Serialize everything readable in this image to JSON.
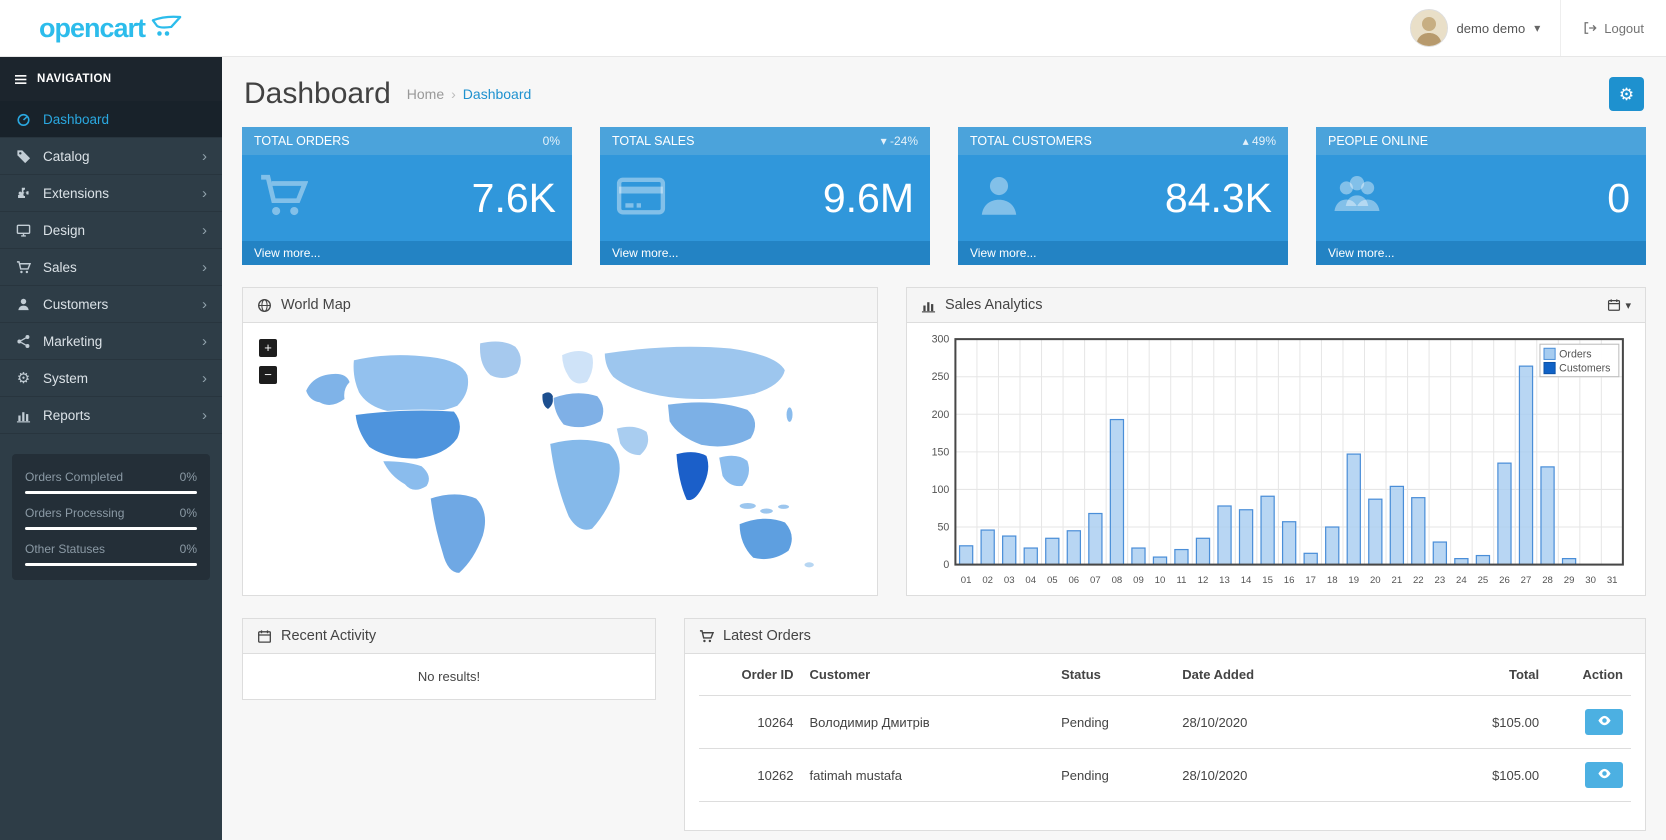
{
  "header": {
    "logo_text": "opencart",
    "user_name": "demo demo",
    "logout_label": "Logout"
  },
  "sidebar": {
    "nav_title": "NAVIGATION",
    "items": [
      {
        "label": "Dashboard",
        "icon": "dashboard-icon",
        "active": true,
        "has_children": false
      },
      {
        "label": "Catalog",
        "icon": "tag-icon",
        "active": false,
        "has_children": true
      },
      {
        "label": "Extensions",
        "icon": "puzzle-icon",
        "active": false,
        "has_children": true
      },
      {
        "label": "Design",
        "icon": "monitor-icon",
        "active": false,
        "has_children": true
      },
      {
        "label": "Sales",
        "icon": "cart-icon",
        "active": false,
        "has_children": true
      },
      {
        "label": "Customers",
        "icon": "user-icon",
        "active": false,
        "has_children": true
      },
      {
        "label": "Marketing",
        "icon": "share-icon",
        "active": false,
        "has_children": true
      },
      {
        "label": "System",
        "icon": "gear-icon",
        "active": false,
        "has_children": true
      },
      {
        "label": "Reports",
        "icon": "bar-chart-icon",
        "active": false,
        "has_children": true
      }
    ],
    "progress": [
      {
        "label": "Orders Completed",
        "value": "0%"
      },
      {
        "label": "Orders Processing",
        "value": "0%"
      },
      {
        "label": "Other Statuses",
        "value": "0%"
      }
    ]
  },
  "page": {
    "title": "Dashboard",
    "breadcrumb": [
      "Home",
      "Dashboard"
    ]
  },
  "tiles": [
    {
      "title": "TOTAL ORDERS",
      "delta": "0%",
      "trend": "none",
      "value": "7.6K",
      "icon": "cart-icon",
      "link": "View more..."
    },
    {
      "title": "TOTAL SALES",
      "delta": "-24%",
      "trend": "down",
      "value": "9.6M",
      "icon": "credit-card-icon",
      "link": "View more..."
    },
    {
      "title": "TOTAL CUSTOMERS",
      "delta": "49%",
      "trend": "up",
      "value": "84.3K",
      "icon": "user-icon",
      "link": "View more..."
    },
    {
      "title": "PEOPLE ONLINE",
      "delta": "",
      "trend": "none",
      "value": "0",
      "icon": "users-icon",
      "link": "View more..."
    }
  ],
  "world_map": {
    "title": "World Map",
    "zoom_in_label": "+",
    "zoom_out_label": "−"
  },
  "sales_analytics": {
    "title": "Sales Analytics"
  },
  "chart_data": {
    "type": "bar",
    "title": "Sales Analytics",
    "xlabel": "",
    "ylabel": "",
    "categories": [
      "01",
      "02",
      "03",
      "04",
      "05",
      "06",
      "07",
      "08",
      "09",
      "10",
      "11",
      "12",
      "13",
      "14",
      "15",
      "16",
      "17",
      "18",
      "19",
      "20",
      "21",
      "22",
      "23",
      "24",
      "25",
      "26",
      "27",
      "28",
      "29",
      "30",
      "31"
    ],
    "series": [
      {
        "name": "Orders",
        "color": "#a6ccf0",
        "border": "#4a8ed8",
        "values": [
          25,
          46,
          38,
          22,
          35,
          45,
          68,
          193,
          22,
          10,
          20,
          35,
          78,
          73,
          91,
          57,
          15,
          50,
          147,
          87,
          104,
          89,
          30,
          8,
          12,
          135,
          264,
          130,
          8,
          0,
          0
        ]
      },
      {
        "name": "Customers",
        "color": "#1062c6",
        "border": "#0c52a8",
        "values": [
          0,
          0,
          0,
          0,
          0,
          0,
          0,
          0,
          0,
          0,
          0,
          0,
          0,
          0,
          0,
          0,
          0,
          0,
          0,
          0,
          0,
          0,
          0,
          0,
          0,
          0,
          0,
          0,
          0,
          0,
          0
        ]
      }
    ],
    "ylim": [
      0,
      300
    ],
    "yticks": [
      0,
      50,
      100,
      150,
      200,
      250,
      300
    ],
    "grid": true,
    "legend_position": "top-right"
  },
  "recent_activity": {
    "title": "Recent Activity",
    "empty_text": "No results!"
  },
  "latest_orders": {
    "title": "Latest Orders",
    "columns": [
      "Order ID",
      "Customer",
      "Status",
      "Date Added",
      "Total",
      "Action"
    ],
    "rows": [
      {
        "order_id": "10264",
        "customer": "Володимир Дмитрів",
        "status": "Pending",
        "date_added": "28/10/2020",
        "total": "$105.00"
      },
      {
        "order_id": "10262",
        "customer": "fatimah mustafa",
        "status": "Pending",
        "date_added": "28/10/2020",
        "total": "$105.00"
      }
    ]
  },
  "colors": {
    "brand": "#2cbceb",
    "link": "#1e91cf",
    "tile_header": "#4ba3db",
    "tile_body": "#3097db",
    "tile_footer": "#2383c4",
    "sidebar_bg": "#2e3d47",
    "sidebar_active_text": "#2aa8e0",
    "orders_series": "#a6ccf0",
    "customers_series": "#1062c6",
    "eye_button": "#4cb0e2"
  }
}
